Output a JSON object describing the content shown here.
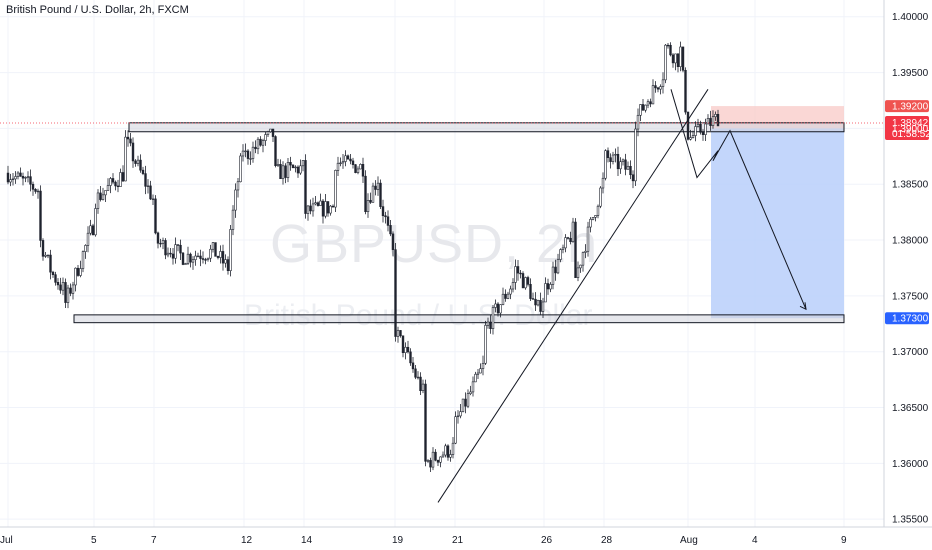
{
  "header": {
    "title": "British Pound / U.S. Dollar, 2h, FXCM"
  },
  "watermark": {
    "symbol": "GBPUSD, 2h",
    "name": "British Pound / U.S. Dollar"
  },
  "colors": {
    "up": "#26a69a",
    "down": "#ef5350",
    "candle": "#1e222d",
    "stop_zone": "#f8c9c7",
    "target_zone": "#b9cffa",
    "stop_badge": "#ef5350",
    "entry_badge": "#5d606b",
    "price_badge": "#f23645",
    "target_badge": "#2962ff"
  },
  "price_badges": {
    "stop": "1.39200",
    "entry": "1.39000",
    "current": "1.38942",
    "countdown": "01:58:52",
    "target": "1.37300"
  },
  "chart_data": {
    "type": "candlestick",
    "title": "British Pound / U.S. Dollar, 2h, FXCM",
    "ylim": [
      1.3543,
      1.4015
    ],
    "y_ticks": [
      "1.40000",
      "1.39500",
      "1.39000",
      "1.38500",
      "1.38000",
      "1.37500",
      "1.37000",
      "1.36500",
      "1.36000",
      "1.35500"
    ],
    "y_tick_values": [
      1.4,
      1.395,
      1.39,
      1.385,
      1.38,
      1.375,
      1.37,
      1.365,
      1.36,
      1.355
    ],
    "x_ticks": [
      "Jul",
      "5",
      "7",
      "12",
      "14",
      "19",
      "21",
      "26",
      "28",
      "Aug",
      "4",
      "9"
    ],
    "path": [
      [
        1.386,
        "Jul 1"
      ],
      [
        1.3845,
        "Jul 2"
      ],
      [
        1.3805,
        "Jul 2"
      ],
      [
        1.377,
        "Jul 3"
      ],
      [
        1.3755,
        "Jul 4"
      ],
      [
        1.374,
        "Jul 4"
      ],
      [
        1.3815,
        "Jul 5"
      ],
      [
        1.3835,
        "Jul 5"
      ],
      [
        1.386,
        "Jul 6"
      ],
      [
        1.3892,
        "Jul 6"
      ],
      [
        1.3835,
        "Jul 7"
      ],
      [
        1.38,
        "Jul 7"
      ],
      [
        1.3785,
        "Jul 8"
      ],
      [
        1.379,
        "Jul 9"
      ],
      [
        1.3775,
        "Jul 10"
      ],
      [
        1.3795,
        "Jul 10"
      ],
      [
        1.383,
        "Jul 11"
      ],
      [
        1.3888,
        "Jul 12"
      ],
      [
        1.3875,
        "Jul 12"
      ],
      [
        1.3895,
        "Jul 13"
      ],
      [
        1.386,
        "Jul 13"
      ],
      [
        1.3865,
        "Jul 14"
      ],
      [
        1.3825,
        "Jul 14"
      ],
      [
        1.383,
        "Jul 15"
      ],
      [
        1.387,
        "Jul 15"
      ],
      [
        1.3865,
        "Jul 16"
      ],
      [
        1.383,
        "Jul 16"
      ],
      [
        1.3855,
        "Jul 17"
      ],
      [
        1.384,
        "Jul 17"
      ],
      [
        1.382,
        "Jul 18"
      ],
      [
        1.378,
        "Jul 19"
      ],
      [
        1.372,
        "Jul 19"
      ],
      [
        1.366,
        "Jul 20"
      ],
      [
        1.3625,
        "Jul 20"
      ],
      [
        1.36,
        "Jul 20"
      ],
      [
        1.3615,
        "Jul 21"
      ],
      [
        1.3635,
        "Jul 21"
      ],
      [
        1.369,
        "Jul 22"
      ],
      [
        1.372,
        "Jul 22"
      ],
      [
        1.3765,
        "Jul 23"
      ],
      [
        1.3775,
        "Jul 23"
      ],
      [
        1.3755,
        "Jul 24"
      ],
      [
        1.3735,
        "Jul 25"
      ],
      [
        1.375,
        "Jul 26"
      ],
      [
        1.3755,
        "Jul 26"
      ],
      [
        1.381,
        "Jul 27"
      ],
      [
        1.383,
        "Jul 27"
      ],
      [
        1.3762,
        "Jul 27"
      ],
      [
        1.3855,
        "Jul 28"
      ],
      [
        1.3875,
        "Jul 28"
      ],
      [
        1.386,
        "Jul 29"
      ],
      [
        1.388,
        "Jul 29"
      ],
      [
        1.3905,
        "Jul 29"
      ],
      [
        1.395,
        "Jul 30"
      ],
      [
        1.3975,
        "Jul 30"
      ],
      [
        1.396,
        "Jul 31"
      ],
      [
        1.3975,
        "Jul 31"
      ],
      [
        1.3895,
        "Aug 1"
      ],
      [
        1.389,
        "Aug 1"
      ],
      [
        1.391,
        "Aug 2"
      ],
      [
        1.3894,
        "Aug 2"
      ]
    ],
    "levels": {
      "resistance": [
        1.3897,
        1.3905
      ],
      "support": [
        1.3726,
        1.3733
      ]
    },
    "trendline": {
      "from": [
        1.3565,
        "Jul 20"
      ],
      "to": [
        1.3935,
        "Aug 1"
      ]
    },
    "projection": [
      [
        1.3935,
        "Jul 31"
      ],
      [
        1.3856,
        "Aug 1"
      ],
      [
        1.388,
        "Aug 2"
      ],
      [
        1.3871,
        "Aug 1"
      ],
      [
        1.3898,
        "Aug 3"
      ],
      [
        1.3738,
        "Aug 7"
      ]
    ],
    "position": {
      "type": "short",
      "entry": 1.39,
      "stop": 1.392,
      "target": 1.373,
      "start": "Aug 2",
      "end": "Aug 8"
    }
  }
}
